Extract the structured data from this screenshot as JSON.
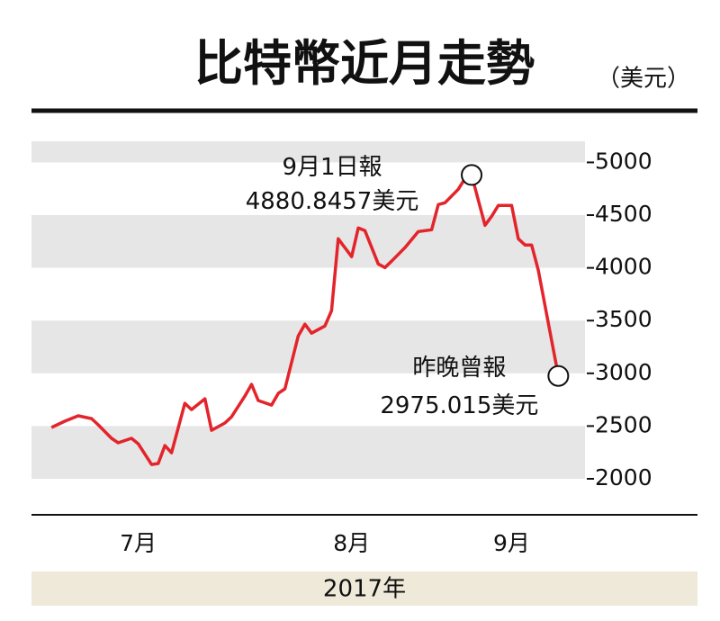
{
  "chart_data": {
    "type": "line",
    "title": "比特幣近月走勢",
    "y_label": "（美元）",
    "x_label": "2017年",
    "series": [
      {
        "color": "#e3242b",
        "x": [
          0,
          2,
          4,
          6,
          7,
          9,
          10,
          12,
          13,
          15,
          16,
          17,
          18,
          20,
          21,
          23,
          24,
          26,
          27,
          29,
          30,
          31,
          33,
          34,
          35,
          37,
          38,
          39,
          41,
          42,
          43,
          45,
          46,
          47,
          49,
          50,
          51,
          53,
          55,
          57,
          58,
          59,
          61,
          62,
          63,
          65,
          66,
          67,
          69,
          70,
          71,
          72,
          73,
          76
        ],
        "values": [
          2486,
          2546,
          2597,
          2571,
          2512,
          2384,
          2341,
          2384,
          2332,
          2136,
          2145,
          2315,
          2247,
          2716,
          2656,
          2759,
          2460,
          2529,
          2588,
          2784,
          2895,
          2742,
          2699,
          2810,
          2853,
          3355,
          3466,
          3381,
          3449,
          3594,
          4276,
          4106,
          4378,
          4353,
          4037,
          4003,
          4063,
          4191,
          4344,
          4361,
          4600,
          4617,
          4745,
          4847,
          4880.8457,
          4404,
          4489,
          4592,
          4592,
          4276,
          4217,
          4217,
          3978,
          2975.015
        ]
      }
    ],
    "xlim": [
      -3,
      80
    ],
    "xticks": [
      {
        "value": 13,
        "label": "7月"
      },
      {
        "value": 45,
        "label": "8月"
      },
      {
        "value": 69,
        "label": "9月"
      }
    ],
    "ylim": [
      2000,
      5200
    ],
    "yticks": [
      2000,
      2500,
      3000,
      3500,
      4000,
      4500,
      5000
    ],
    "bands": true,
    "annotations": [
      {
        "text": "9月1日報",
        "label": "4880.8457美元",
        "x": 63,
        "value": 4880.8457
      },
      {
        "text": "昨晚曾報",
        "label": "2975.015美元",
        "x": 76,
        "value": 2975.015
      }
    ]
  }
}
